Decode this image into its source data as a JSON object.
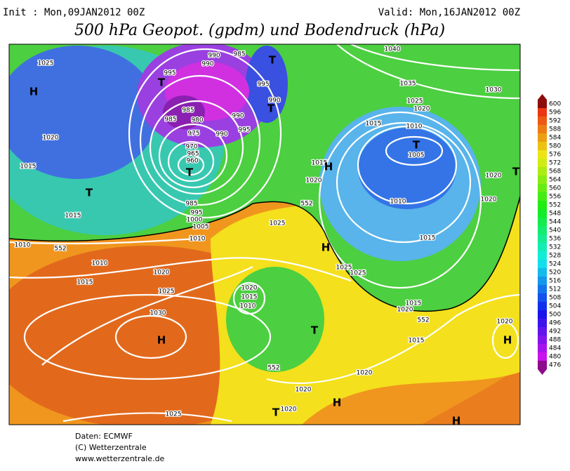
{
  "header": {
    "init": "Init : Mon,09JAN2012 00Z",
    "valid": "Valid: Mon,16JAN2012 00Z",
    "title": "500 hPa Geopot. (gpdm) und Bodendruck (hPa)"
  },
  "colorbar": {
    "labels": [
      "600",
      "596",
      "592",
      "588",
      "584",
      "580",
      "576",
      "572",
      "568",
      "564",
      "560",
      "556",
      "552",
      "548",
      "544",
      "540",
      "536",
      "532",
      "528",
      "524",
      "520",
      "516",
      "512",
      "508",
      "504",
      "500",
      "496",
      "492",
      "488",
      "484",
      "480",
      "476"
    ]
  },
  "map": {
    "labels": [
      "1025",
      "H",
      "1020",
      "1015",
      "T",
      "1015",
      "1010",
      "1010",
      "1015",
      "1020",
      "1025",
      "1030",
      "H",
      "1025",
      "T",
      "995",
      "990",
      "985",
      "990",
      "985",
      "985",
      "980",
      "975",
      "970",
      "965",
      "960",
      "T",
      "990",
      "995",
      "990",
      "T",
      "995",
      "990",
      "T",
      "985",
      "995",
      "1000",
      "1005",
      "1010",
      "1025",
      "1020",
      "1015",
      "1010",
      "1015",
      "H",
      "1020",
      "552",
      "H",
      "1025",
      "1025",
      "1015",
      "1010",
      "T",
      "1005",
      "1010",
      "1015",
      "1020",
      "1015",
      "552",
      "1015",
      "1020",
      "H",
      "T",
      "552",
      "1020",
      "1020",
      "1020",
      "T",
      "H",
      "H",
      "1040",
      "1035",
      "1030",
      "1025",
      "1020",
      "1020",
      "1020",
      "T",
      "552"
    ]
  },
  "footer": {
    "lines": [
      "Daten: ECMWF",
      "(C) Wetterzentrale",
      "www.wetterzentrale.de"
    ]
  }
}
